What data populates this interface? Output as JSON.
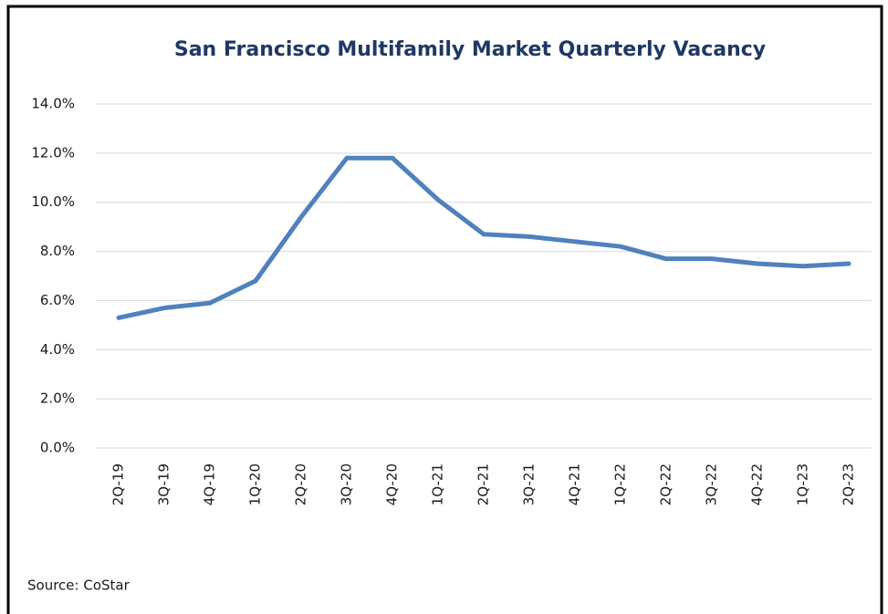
{
  "chart_data": {
    "type": "line",
    "title": "San Francisco  Multifamily Market Quarterly Vacancy",
    "categories": [
      "2Q-19",
      "3Q-19",
      "4Q-19",
      "1Q-20",
      "2Q-20",
      "3Q-20",
      "4Q-20",
      "1Q-21",
      "2Q-21",
      "3Q-21",
      "4Q-21",
      "1Q-22",
      "2Q-22",
      "3Q-22",
      "4Q-22",
      "1Q-23",
      "2Q-23"
    ],
    "series": [
      {
        "name": "Vacancy",
        "color": "#4f81bd",
        "values": [
          5.3,
          5.7,
          5.9,
          6.8,
          9.4,
          11.8,
          11.8,
          10.1,
          8.7,
          8.6,
          8.4,
          8.2,
          7.7,
          7.7,
          7.5,
          7.4,
          7.5
        ]
      }
    ],
    "ylim": [
      0,
      14
    ],
    "yticks": [
      {
        "value": 0,
        "label": "0.0%"
      },
      {
        "value": 2,
        "label": "2.0%"
      },
      {
        "value": 4,
        "label": "4.0%"
      },
      {
        "value": 6,
        "label": "6.0%"
      },
      {
        "value": 8,
        "label": "8.0%"
      },
      {
        "value": 10,
        "label": "10.0%"
      },
      {
        "value": 12,
        "label": "12.0%"
      },
      {
        "value": 14,
        "label": "14.0%"
      }
    ],
    "grid": true,
    "source": "Source: CoStar"
  }
}
